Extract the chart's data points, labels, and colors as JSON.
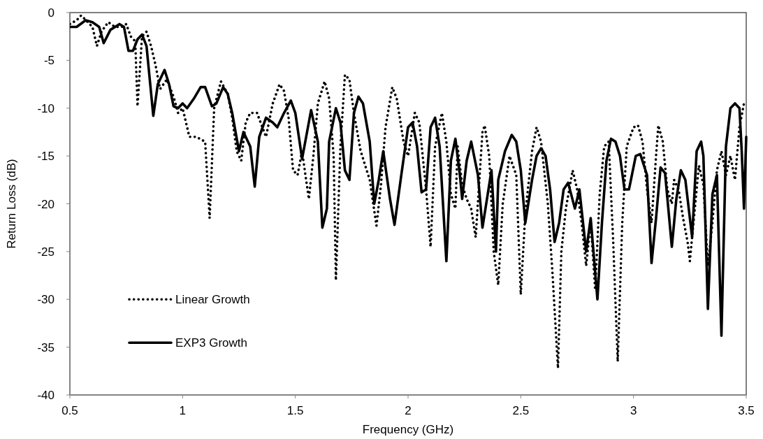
{
  "chart_data": {
    "type": "line",
    "xlabel": "Frequency (GHz)",
    "ylabel": "Return Loss (dB)",
    "xlim": [
      0.5,
      3.5
    ],
    "xticks": [
      0.5,
      1,
      1.5,
      2,
      2.5,
      3,
      3.5
    ],
    "ylim": [
      -40,
      0
    ],
    "yticks": [
      -40,
      -35,
      -30,
      -25,
      -20,
      -15,
      -10,
      -5,
      0
    ],
    "grid": false,
    "legend": "bottom left",
    "series": [
      {
        "name": "Linear Growth",
        "color": "#000000",
        "line_style": "dotted",
        "x": [
          0.5,
          0.53,
          0.55,
          0.58,
          0.6,
          0.62,
          0.64,
          0.67,
          0.7,
          0.73,
          0.75,
          0.77,
          0.79,
          0.8,
          0.82,
          0.84,
          0.86,
          0.88,
          0.9,
          0.93,
          0.96,
          0.98,
          1.0,
          1.03,
          1.06,
          1.1,
          1.12,
          1.14,
          1.17,
          1.2,
          1.22,
          1.24,
          1.26,
          1.28,
          1.3,
          1.33,
          1.37,
          1.4,
          1.43,
          1.45,
          1.47,
          1.49,
          1.51,
          1.53,
          1.56,
          1.58,
          1.6,
          1.63,
          1.65,
          1.67,
          1.68,
          1.7,
          1.72,
          1.74,
          1.76,
          1.79,
          1.83,
          1.86,
          1.88,
          1.9,
          1.93,
          1.95,
          1.98,
          2.0,
          2.03,
          2.05,
          2.08,
          2.1,
          2.12,
          2.15,
          2.17,
          2.19,
          2.21,
          2.22,
          2.24,
          2.26,
          2.28,
          2.3,
          2.33,
          2.34,
          2.36,
          2.38,
          2.4,
          2.42,
          2.45,
          2.48,
          2.5,
          2.52,
          2.55,
          2.57,
          2.59,
          2.62,
          2.64,
          2.665,
          2.68,
          2.7,
          2.73,
          2.75,
          2.77,
          2.79,
          2.81,
          2.83,
          2.85,
          2.87,
          2.89,
          2.91,
          2.93,
          2.95,
          2.97,
          3.0,
          3.02,
          3.04,
          3.06,
          3.08,
          3.1,
          3.11,
          3.13,
          3.15,
          3.17,
          3.18,
          3.2,
          3.22,
          3.24,
          3.25,
          3.27,
          3.29,
          3.31,
          3.33,
          3.35,
          3.37,
          3.39,
          3.41,
          3.43,
          3.45,
          3.47,
          3.49
        ],
        "values": [
          -1.2,
          -0.8,
          -0.3,
          -1.0,
          -1.5,
          -3.5,
          -2.0,
          -1.0,
          -1.5,
          -1.5,
          -1.2,
          -2.5,
          -3.0,
          -9.8,
          -2.5,
          -2.0,
          -3.5,
          -5.5,
          -8.0,
          -7.0,
          -8.8,
          -10.5,
          -10.0,
          -13.0,
          -13.0,
          -13.5,
          -21.5,
          -10.0,
          -7.2,
          -8.5,
          -11.0,
          -14.5,
          -15.5,
          -11.5,
          -10.5,
          -10.5,
          -13.0,
          -9.5,
          -7.5,
          -8.2,
          -11.0,
          -16.5,
          -17.0,
          -14.5,
          -19.5,
          -15.0,
          -9.5,
          -7.2,
          -9.0,
          -15.0,
          -28.0,
          -14.0,
          -6.5,
          -7.0,
          -10.5,
          -14.5,
          -17.5,
          -22.3,
          -18.0,
          -12.0,
          -7.8,
          -9.0,
          -13.5,
          -15.0,
          -10.5,
          -11.5,
          -18.5,
          -24.5,
          -14.0,
          -10.5,
          -13.5,
          -19.0,
          -20.5,
          -14.0,
          -18.0,
          -19.5,
          -20.5,
          -23.5,
          -12.5,
          -11.8,
          -15.0,
          -25.0,
          -28.5,
          -20.0,
          -15.0,
          -17.0,
          -29.5,
          -21.0,
          -14.5,
          -12.0,
          -13.5,
          -20.0,
          -27.0,
          -37.2,
          -25.0,
          -20.5,
          -16.5,
          -18.5,
          -22.0,
          -26.5,
          -21.8,
          -29.0,
          -19.0,
          -14.0,
          -13.5,
          -24.0,
          -36.5,
          -22.0,
          -14.0,
          -12.0,
          -11.8,
          -13.5,
          -18.5,
          -22.0,
          -15.0,
          -11.8,
          -13.5,
          -18.5,
          -20.0,
          -17.5,
          -18.5,
          -21.5,
          -24.0,
          -26.0,
          -21.0,
          -16.0,
          -18.0,
          -26.5,
          -22.0,
          -16.5,
          -14.5,
          -17.0,
          -15.0,
          -17.5,
          -12.0,
          -9.5
        ]
      },
      {
        "name": "EXP3 Growth",
        "color": "#000000",
        "line_style": "solid",
        "x": [
          0.5,
          0.53,
          0.57,
          0.6,
          0.63,
          0.65,
          0.68,
          0.72,
          0.74,
          0.76,
          0.78,
          0.8,
          0.82,
          0.84,
          0.87,
          0.89,
          0.92,
          0.94,
          0.96,
          0.98,
          1.0,
          1.02,
          1.05,
          1.08,
          1.1,
          1.13,
          1.15,
          1.18,
          1.2,
          1.22,
          1.25,
          1.27,
          1.3,
          1.32,
          1.34,
          1.37,
          1.4,
          1.42,
          1.45,
          1.48,
          1.5,
          1.53,
          1.57,
          1.6,
          1.62,
          1.64,
          1.65,
          1.68,
          1.7,
          1.72,
          1.74,
          1.76,
          1.78,
          1.8,
          1.83,
          1.85,
          1.87,
          1.89,
          1.92,
          1.94,
          1.97,
          2.0,
          2.02,
          2.04,
          2.06,
          2.08,
          2.1,
          2.12,
          2.14,
          2.17,
          2.19,
          2.21,
          2.23,
          2.24,
          2.26,
          2.28,
          2.31,
          2.33,
          2.35,
          2.37,
          2.39,
          2.4,
          2.43,
          2.46,
          2.48,
          2.5,
          2.52,
          2.55,
          2.57,
          2.59,
          2.61,
          2.63,
          2.65,
          2.67,
          2.69,
          2.71,
          2.74,
          2.76,
          2.79,
          2.81,
          2.84,
          2.86,
          2.88,
          2.9,
          2.92,
          2.94,
          2.96,
          2.98,
          3.01,
          3.03,
          3.06,
          3.08,
          3.1,
          3.12,
          3.14,
          3.17,
          3.19,
          3.21,
          3.23,
          3.26,
          3.28,
          3.3,
          3.31,
          3.33,
          3.35,
          3.37,
          3.39,
          3.41,
          3.43,
          3.45,
          3.47,
          3.48,
          3.49,
          3.5
        ],
        "values": [
          -1.5,
          -1.5,
          -0.8,
          -1.0,
          -1.5,
          -3.2,
          -1.8,
          -1.2,
          -1.5,
          -4.0,
          -4.0,
          -2.8,
          -2.3,
          -3.5,
          -10.8,
          -7.5,
          -6.0,
          -7.5,
          -9.8,
          -10.0,
          -9.5,
          -10.0,
          -9.0,
          -7.8,
          -7.8,
          -9.8,
          -9.5,
          -7.8,
          -8.5,
          -10.5,
          -14.5,
          -12.5,
          -14.0,
          -18.2,
          -13.0,
          -11.0,
          -11.5,
          -12.0,
          -10.5,
          -9.2,
          -10.5,
          -15.3,
          -10.2,
          -13.5,
          -22.5,
          -20.5,
          -13.5,
          -10.0,
          -11.5,
          -16.5,
          -17.5,
          -10.5,
          -8.8,
          -9.5,
          -13.5,
          -20.0,
          -17.5,
          -14.5,
          -19.5,
          -22.2,
          -17.0,
          -12.0,
          -11.5,
          -14.0,
          -18.8,
          -18.5,
          -12.0,
          -11.0,
          -14.0,
          -26.0,
          -15.5,
          -13.2,
          -17.0,
          -19.5,
          -15.5,
          -13.5,
          -17.0,
          -22.5,
          -19.5,
          -16.5,
          -25.0,
          -17.5,
          -14.5,
          -12.8,
          -13.5,
          -16.5,
          -22.0,
          -17.5,
          -15.0,
          -14.2,
          -15.0,
          -18.5,
          -24.0,
          -22.0,
          -18.5,
          -17.8,
          -20.5,
          -18.5,
          -25.0,
          -21.5,
          -30.0,
          -22.0,
          -15.5,
          -13.2,
          -13.5,
          -15.0,
          -18.5,
          -18.5,
          -15.0,
          -14.8,
          -17.0,
          -26.2,
          -21.5,
          -16.2,
          -16.8,
          -24.5,
          -19.5,
          -16.5,
          -17.5,
          -23.5,
          -14.5,
          -13.5,
          -15.0,
          -31.0,
          -19.0,
          -17.0,
          -33.8,
          -14.0,
          -10.0,
          -9.5,
          -10.0,
          -14.5,
          -20.5,
          -13.0
        ]
      }
    ]
  }
}
